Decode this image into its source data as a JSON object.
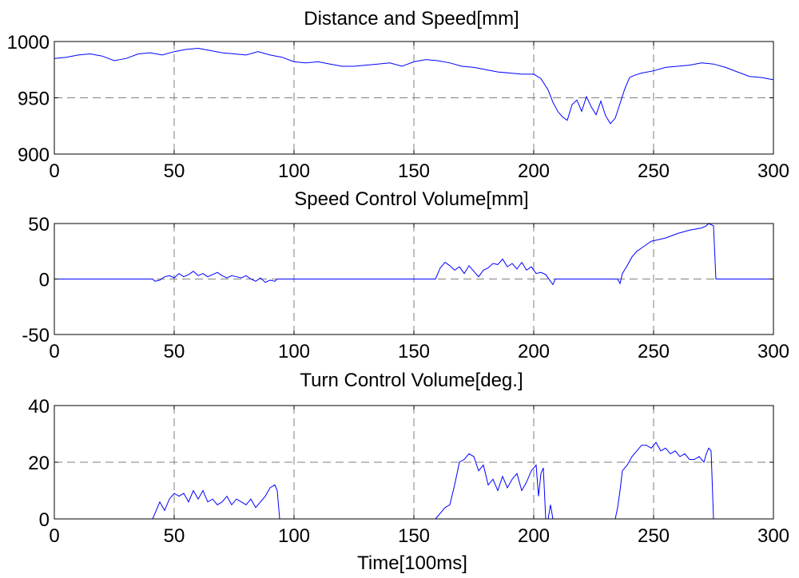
{
  "chart_data": [
    {
      "type": "line",
      "title": "Distance and Speed[mm]",
      "xlabel": "",
      "ylabel": "",
      "xlim": [
        0,
        300
      ],
      "ylim": [
        900,
        1000
      ],
      "xticks": [
        0,
        50,
        100,
        150,
        200,
        250,
        300
      ],
      "yticks": [
        900,
        950,
        1000
      ],
      "grid": true,
      "line_color": "#0000ff",
      "series": [
        {
          "x": [
            0,
            5,
            10,
            15,
            20,
            25,
            30,
            35,
            40,
            45,
            50,
            55,
            60,
            65,
            70,
            75,
            80,
            85,
            90,
            95,
            100,
            105,
            110,
            115,
            120,
            125,
            130,
            135,
            140,
            145,
            150,
            155,
            160,
            165,
            170,
            175,
            180,
            185,
            190,
            195,
            200,
            203,
            206,
            208,
            210,
            212,
            214,
            216,
            218,
            220,
            222,
            224,
            226,
            228,
            230,
            232,
            234,
            236,
            238,
            240,
            242,
            245,
            250,
            255,
            260,
            265,
            270,
            275,
            280,
            285,
            290,
            295,
            300
          ],
          "y": [
            985,
            986,
            988,
            989,
            987,
            983,
            985,
            989,
            990,
            988,
            991,
            993,
            994,
            992,
            990,
            989,
            988,
            991,
            988,
            986,
            982,
            981,
            982,
            980,
            978,
            978,
            979,
            980,
            981,
            978,
            982,
            984,
            983,
            981,
            978,
            977,
            975,
            973,
            972,
            971,
            971,
            967,
            957,
            946,
            938,
            933,
            930,
            944,
            948,
            938,
            951,
            942,
            935,
            947,
            934,
            927,
            932,
            945,
            958,
            968,
            970,
            972,
            974,
            977,
            978,
            979,
            981,
            980,
            977,
            973,
            969,
            968,
            966
          ]
        }
      ]
    },
    {
      "type": "line",
      "title": "Speed Control Volume[mm]",
      "xlabel": "",
      "ylabel": "",
      "xlim": [
        0,
        300
      ],
      "ylim": [
        -50,
        50
      ],
      "xticks": [
        0,
        50,
        100,
        150,
        200,
        250,
        300
      ],
      "yticks": [
        -50,
        0,
        50
      ],
      "grid": true,
      "line_color": "#0000ff",
      "series": [
        {
          "x": [
            0,
            41,
            42,
            44,
            46,
            48,
            50,
            52,
            54,
            56,
            58,
            60,
            62,
            64,
            66,
            68,
            70,
            72,
            74,
            76,
            78,
            80,
            82,
            84,
            86,
            88,
            90,
            92,
            93,
            159,
            160,
            161,
            163,
            165,
            167,
            169,
            171,
            173,
            175,
            177,
            179,
            181,
            183,
            185,
            187,
            189,
            191,
            193,
            195,
            197,
            199,
            201,
            203,
            205,
            207,
            208,
            209,
            235,
            236,
            237,
            239,
            241,
            243,
            245,
            247,
            249,
            251,
            255,
            260,
            265,
            270,
            272,
            273,
            274,
            275,
            276,
            300
          ],
          "y": [
            0,
            0,
            -2,
            -1,
            2,
            3,
            1,
            5,
            2,
            4,
            7,
            3,
            5,
            2,
            4,
            6,
            3,
            1,
            3,
            2,
            1,
            3,
            0,
            -2,
            1,
            -3,
            -1,
            -2,
            0,
            0,
            5,
            10,
            15,
            12,
            8,
            11,
            5,
            12,
            7,
            2,
            8,
            10,
            14,
            13,
            18,
            11,
            14,
            9,
            15,
            8,
            11,
            5,
            6,
            4,
            -2,
            -5,
            0,
            0,
            -4,
            5,
            12,
            20,
            25,
            28,
            31,
            34,
            35,
            37,
            41,
            44,
            46,
            48,
            50,
            49,
            48,
            0,
            0
          ]
        }
      ]
    },
    {
      "type": "line",
      "title": "Turn Control Volume[deg.]",
      "xlabel": "Time[100ms]",
      "ylabel": "",
      "xlim": [
        0,
        300
      ],
      "ylim": [
        0,
        40
      ],
      "xticks": [
        0,
        50,
        100,
        150,
        200,
        250,
        300
      ],
      "yticks": [
        0,
        20,
        40
      ],
      "grid": true,
      "line_color": "#0000ff",
      "series": [
        {
          "x": [
            0,
            41,
            42,
            44,
            46,
            48,
            50,
            52,
            54,
            56,
            58,
            60,
            62,
            64,
            66,
            68,
            70,
            72,
            74,
            76,
            78,
            80,
            82,
            84,
            86,
            88,
            90,
            92,
            93,
            94,
            159,
            160,
            161,
            163,
            165,
            167,
            169,
            171,
            173,
            175,
            177,
            179,
            181,
            183,
            185,
            187,
            189,
            191,
            193,
            195,
            197,
            199,
            201,
            202,
            203,
            204,
            205,
            206,
            207,
            208,
            209,
            210,
            234,
            235,
            236,
            237,
            239,
            241,
            243,
            245,
            247,
            249,
            251,
            253,
            255,
            257,
            259,
            261,
            263,
            265,
            267,
            269,
            271,
            272,
            273,
            274,
            275,
            276,
            300
          ],
          "y": [
            0,
            0,
            2,
            6,
            3,
            7,
            9,
            8,
            9,
            6,
            10,
            7,
            10,
            6,
            7,
            5,
            6,
            8,
            5,
            7,
            6,
            5,
            7,
            4,
            6,
            8,
            11,
            12,
            10,
            0,
            0,
            1,
            2,
            4,
            5,
            12,
            20,
            21,
            23,
            22,
            17,
            19,
            12,
            14,
            10,
            15,
            11,
            14,
            16,
            10,
            13,
            17,
            19,
            8,
            16,
            18,
            0,
            0,
            5,
            0,
            0,
            0,
            0,
            4,
            10,
            17,
            19,
            22,
            24,
            26,
            26,
            25,
            27,
            24,
            25,
            23,
            24,
            22,
            23,
            21,
            21,
            22,
            20,
            23,
            25,
            24,
            0,
            0,
            0
          ]
        }
      ]
    }
  ]
}
